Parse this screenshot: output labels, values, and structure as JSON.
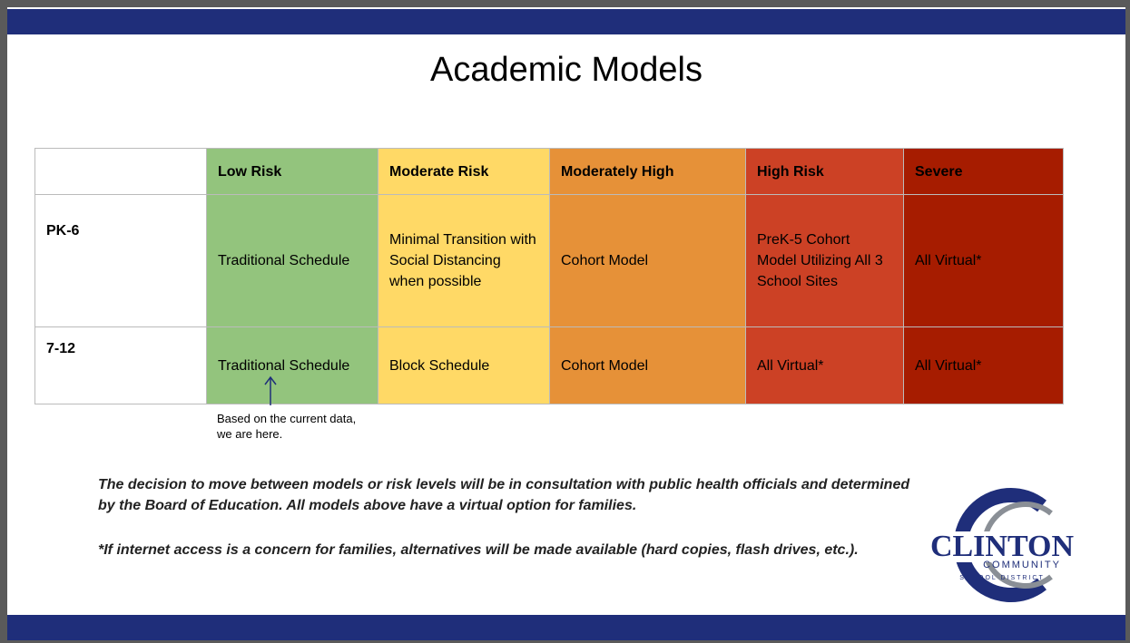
{
  "slide": {
    "title": "Academic Models",
    "table": {
      "header": [
        "",
        "Low Risk",
        "Moderate Risk",
        "Moderately High",
        "High Risk",
        "Severe"
      ],
      "rows": [
        [
          "PK-6",
          "Traditional Schedule",
          "Minimal Transition with Social Distancing when possible",
          "Cohort Model",
          "PreK-5 Cohort Model Utilizing All 3 School Sites",
          "All Virtual*"
        ],
        [
          "7-12",
          "Traditional Schedule",
          "Block Schedule",
          "Cohort Model",
          "All Virtual*",
          "All Virtual*"
        ]
      ]
    },
    "annotation": "Based on the current data, we are here.",
    "notes": [
      "The decision to move between models or risk levels will be in consultation with public health officials and determined by the Board of Education.  All models above have a virtual option for families.",
      "*If internet access is a concern for families, alternatives will be made available (hard copies, flash drives, etc.)."
    ],
    "logo": {
      "name": "CLINTON",
      "line2": "COMMUNITY",
      "line3": "SCHOOL DISTRICT"
    }
  }
}
